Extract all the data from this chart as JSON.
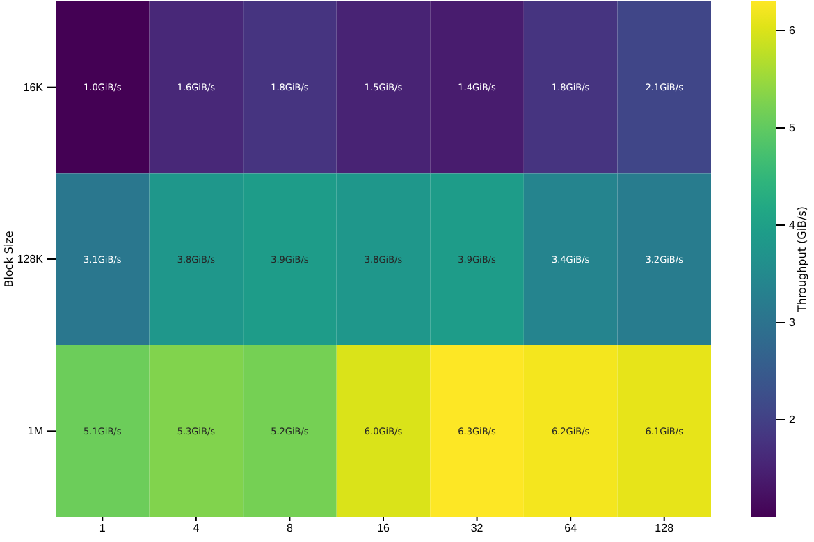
{
  "chart_data": {
    "type": "heatmap",
    "ylabel": "Block Size",
    "clabel": "Throughput (GiB/s)",
    "categories": [
      "1",
      "4",
      "8",
      "16",
      "32",
      "64",
      "128"
    ],
    "y_categories": [
      "16K",
      "128K",
      "1M"
    ],
    "cells": [
      [
        1.0,
        1.6,
        1.8,
        1.5,
        1.4,
        1.8,
        2.1
      ],
      [
        3.1,
        3.8,
        3.9,
        3.8,
        3.9,
        3.4,
        3.2
      ],
      [
        5.1,
        5.3,
        5.2,
        6.0,
        6.3,
        6.2,
        6.1
      ]
    ],
    "cell_labels": [
      [
        "1.0GiB/s",
        "1.6GiB/s",
        "1.8GiB/s",
        "1.5GiB/s",
        "1.4GiB/s",
        "1.8GiB/s",
        "2.1GiB/s"
      ],
      [
        "3.1GiB/s",
        "3.8GiB/s",
        "3.9GiB/s",
        "3.8GiB/s",
        "3.9GiB/s",
        "3.4GiB/s",
        "3.2GiB/s"
      ],
      [
        "5.1GiB/s",
        "5.3GiB/s",
        "5.2GiB/s",
        "6.0GiB/s",
        "6.3GiB/s",
        "6.2GiB/s",
        "6.1GiB/s"
      ]
    ],
    "clim": [
      1.0,
      6.3
    ],
    "cticks": [
      2,
      3,
      4,
      5,
      6
    ]
  }
}
